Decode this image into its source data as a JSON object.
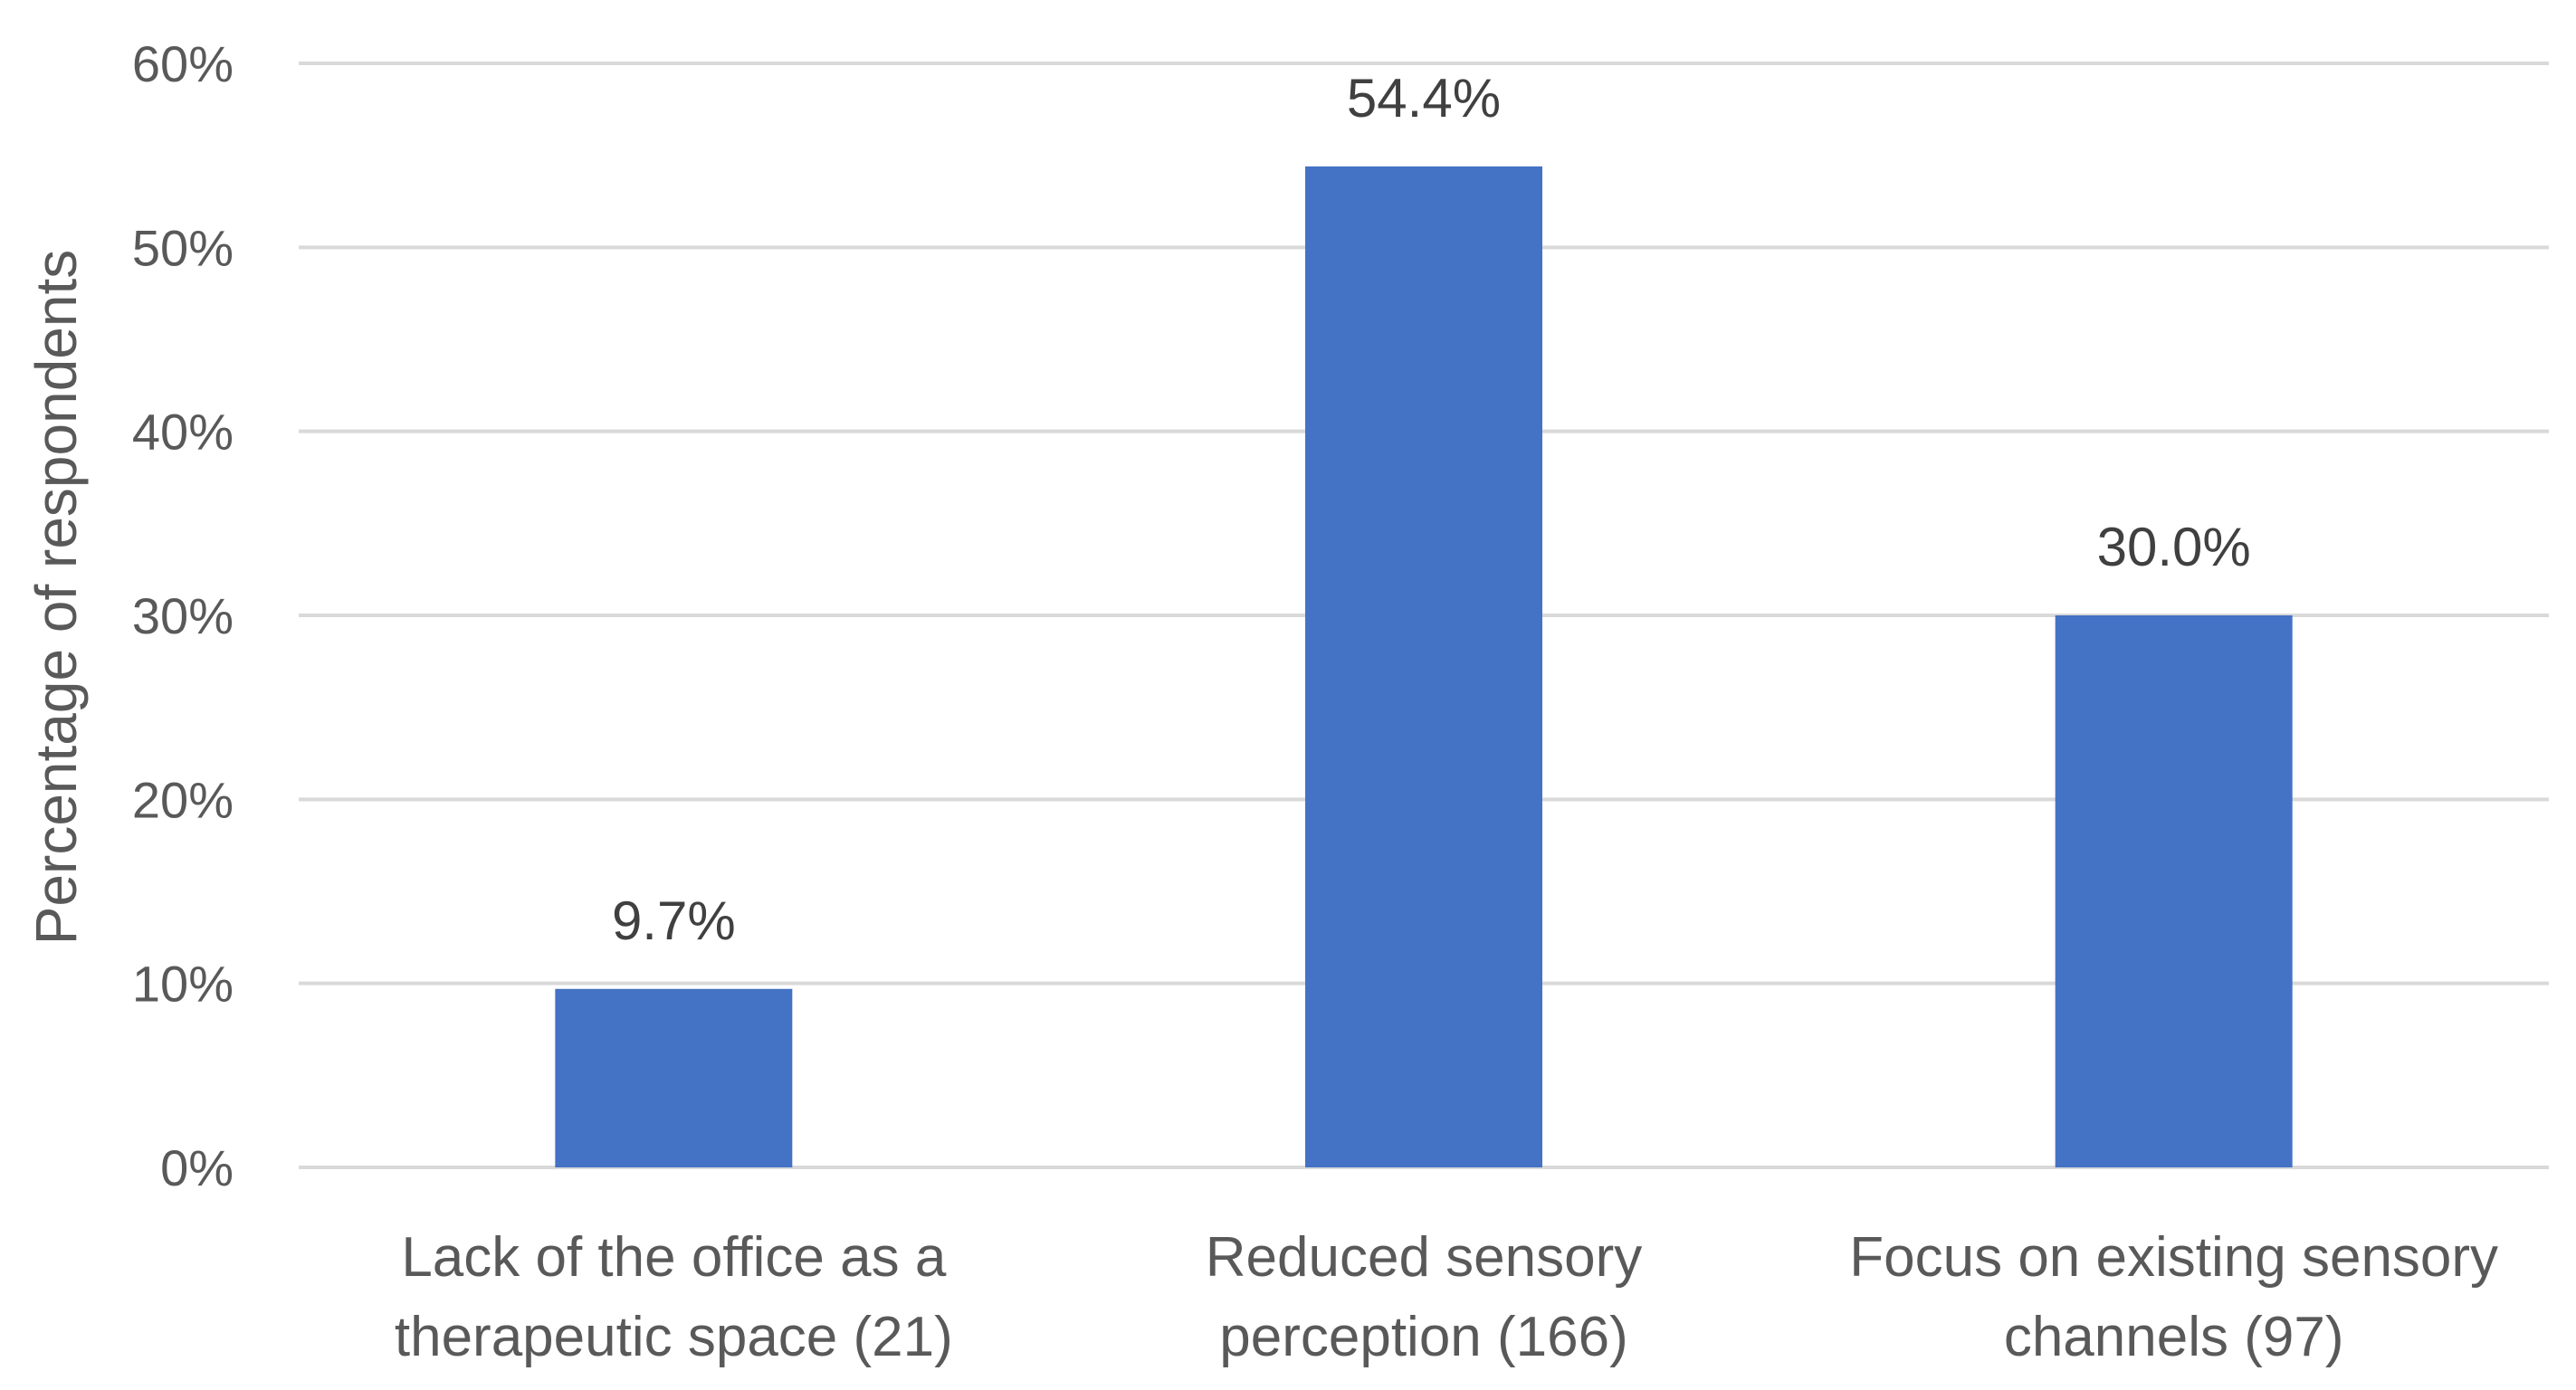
{
  "chart_data": {
    "type": "bar",
    "categories": [
      [
        "Lack of the office as a",
        "therapeutic space (21)"
      ],
      [
        "Reduced sensory",
        "perception (166)"
      ],
      [
        "Focus on existing sensory",
        "channels (97)"
      ]
    ],
    "values": [
      9.7,
      54.4,
      30.0
    ],
    "data_labels": [
      "9.7%",
      "54.4%",
      "30.0%"
    ],
    "title": "",
    "xlabel": "",
    "ylabel": "Percentage of respondents",
    "ylim": [
      0,
      60
    ],
    "yticks": [
      0,
      10,
      20,
      30,
      40,
      50,
      60
    ],
    "ytick_labels": [
      "0%",
      "10%",
      "20%",
      "30%",
      "40%",
      "50%",
      "60%"
    ],
    "grid": true,
    "legend": "none",
    "bar_color": "#4472c4"
  }
}
